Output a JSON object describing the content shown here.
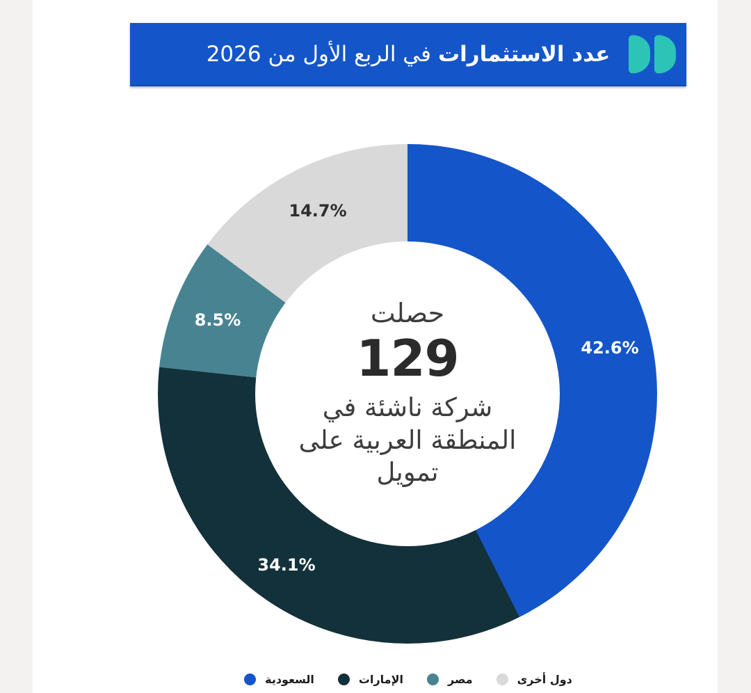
{
  "page": {
    "gutter_color": "#f4f2f1",
    "content_bg": "#ffffff"
  },
  "header": {
    "bg_color": "#1456c9",
    "title_bold": "عدد الاستثمارات",
    "title_rest": "في الربع الأول من 2026",
    "logo_name": "double-d-logo",
    "logo_color": "#2bc4b6"
  },
  "chart_data": {
    "type": "pie",
    "variant": "donut",
    "title": "عدد الاستثمارات في الربع الأول من 2026",
    "start_angle_deg": 0,
    "direction": "clockwise",
    "inner_radius_ratio": 0.61,
    "legend_position": "bottom",
    "categories": [
      "السعودية",
      "الإمارات",
      "مصر",
      "دول أخرى"
    ],
    "values_pct": [
      42.6,
      34.1,
      8.5,
      14.7
    ],
    "slices": [
      {
        "label": "السعودية",
        "value_pct": 42.6,
        "pct_label": "42.6%",
        "color": "#1456c9",
        "pct_label_color": "#ffffff"
      },
      {
        "label": "الإمارات",
        "value_pct": 34.1,
        "pct_label": "34.1%",
        "color": "#13313a",
        "pct_label_color": "#ffffff"
      },
      {
        "label": "مصر",
        "value_pct": 8.5,
        "pct_label": "8.5%",
        "color": "#488392",
        "pct_label_color": "#ffffff"
      },
      {
        "label": "دول أخرى",
        "value_pct": 14.7,
        "pct_label": "14.7%",
        "color": "#d9d9d9",
        "pct_label_color": "#2e2e2e"
      }
    ],
    "center_text": {
      "line1": "حصلت",
      "number": "129",
      "line2": "شركة ناشئة في المنطقة العربية على تمويل"
    }
  }
}
